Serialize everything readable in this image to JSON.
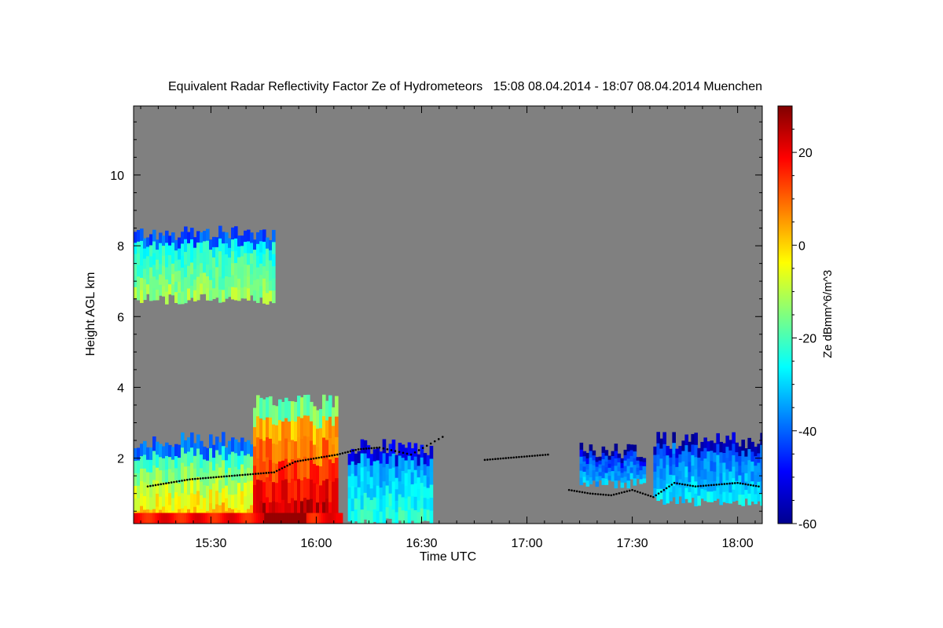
{
  "chart_data": {
    "type": "heatmap",
    "title": "Equivalent Radar Reflectivity Factor Ze of Hydrometeors   15:08 08.04.2014 - 18:07 08.04.2014 Muenchen",
    "xlabel": "Time UTC",
    "ylabel": "Height AGL km",
    "colorbar_label": "Ze dBmm^6/m^3",
    "xlim_hours": [
      15.133,
      18.117
    ],
    "ylim_km": [
      0.15,
      11.95
    ],
    "x_ticks": [
      {
        "value": 15.5,
        "label": "15:30"
      },
      {
        "value": 16.0,
        "label": "16:00"
      },
      {
        "value": 16.5,
        "label": "16:30"
      },
      {
        "value": 17.0,
        "label": "17:00"
      },
      {
        "value": 17.5,
        "label": "17:30"
      },
      {
        "value": 18.0,
        "label": "18:00"
      }
    ],
    "y_ticks": [
      {
        "value": 2,
        "label": "2"
      },
      {
        "value": 4,
        "label": "4"
      },
      {
        "value": 6,
        "label": "6"
      },
      {
        "value": 8,
        "label": "8"
      },
      {
        "value": 10,
        "label": "10"
      }
    ],
    "colorbar_range": [
      -60,
      30
    ],
    "colorbar_ticks": [
      {
        "value": 20,
        "label": "20"
      },
      {
        "value": 0,
        "label": "0"
      },
      {
        "value": -20,
        "label": "-20"
      },
      {
        "value": -40,
        "label": "-40"
      },
      {
        "value": -60,
        "label": "-60"
      }
    ],
    "colorscale": "jet",
    "background_color": "#808080",
    "echo_regions": [
      {
        "name": "upper-cloud",
        "t_start": 15.133,
        "t_end": 15.8,
        "base_km": 6.5,
        "top_km": 8.4,
        "ze_dbz": -20
      },
      {
        "name": "low-cloud-west",
        "t_start": 15.133,
        "t_end": 15.7,
        "base_km": 0.2,
        "top_km": 2.5,
        "ze_dbz": -18
      },
      {
        "name": "convective-cell",
        "t_start": 15.7,
        "t_end": 16.1,
        "base_km": 0.2,
        "top_km": 3.6,
        "ze_dbz": 5
      },
      {
        "name": "fall-streak",
        "t_start": 16.15,
        "t_end": 16.55,
        "base_km": 0.2,
        "top_km": 2.3,
        "ze_dbz": -30
      },
      {
        "name": "low-cloud-east",
        "t_start": 17.6,
        "t_end": 18.117,
        "base_km": 0.8,
        "top_km": 2.5,
        "ze_dbz": -35
      },
      {
        "name": "scattered-echo",
        "t_start": 17.25,
        "t_end": 17.55,
        "base_km": 1.3,
        "top_km": 2.2,
        "ze_dbz": -40
      }
    ],
    "cloud_base_points": [
      [
        15.2,
        1.2
      ],
      [
        15.3,
        1.3
      ],
      [
        15.4,
        1.4
      ],
      [
        15.5,
        1.45
      ],
      [
        15.6,
        1.5
      ],
      [
        15.7,
        1.55
      ],
      [
        15.8,
        1.6
      ],
      [
        15.9,
        1.9
      ],
      [
        16.0,
        2.0
      ],
      [
        16.1,
        2.1
      ],
      [
        16.2,
        2.25
      ],
      [
        16.3,
        2.3
      ],
      [
        16.45,
        2.1
      ],
      [
        16.6,
        2.6
      ],
      [
        16.8,
        1.95
      ],
      [
        16.9,
        2.0
      ],
      [
        17.0,
        2.05
      ],
      [
        17.1,
        2.1
      ],
      [
        17.2,
        1.1
      ],
      [
        17.3,
        1.0
      ],
      [
        17.4,
        0.95
      ],
      [
        17.5,
        1.1
      ],
      [
        17.6,
        0.9
      ],
      [
        17.7,
        1.3
      ],
      [
        17.8,
        1.2
      ],
      [
        17.9,
        1.25
      ],
      [
        18.0,
        1.3
      ],
      [
        18.1,
        1.2
      ]
    ]
  }
}
